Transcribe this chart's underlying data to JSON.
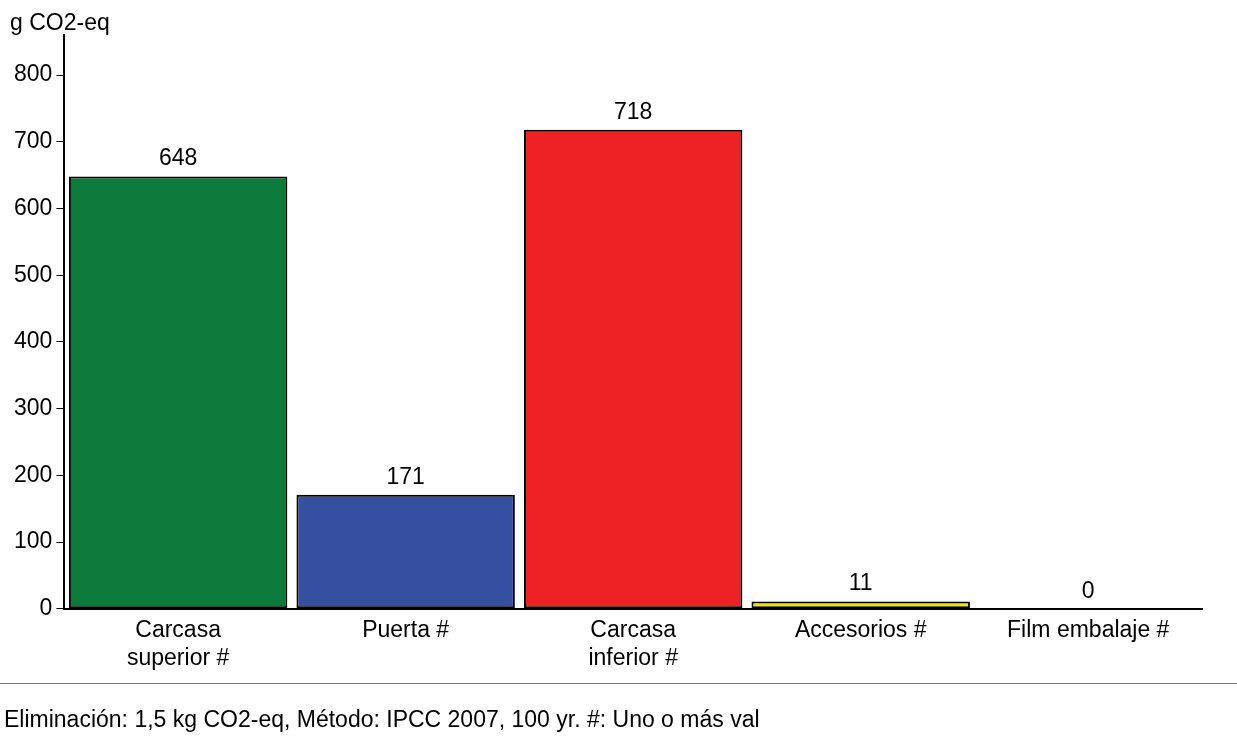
{
  "chart_data": {
    "type": "bar",
    "ylabel": "g CO2-eq",
    "categories": [
      "Carcasa superior #",
      "Puerta #",
      "Carcasa inferior #",
      "Accesorios #",
      "Film embalaje #"
    ],
    "values": [
      648,
      171,
      718,
      11,
      0
    ],
    "colors": [
      "#0b7a3b",
      "#3550a0",
      "#ee2124",
      "#f2e600",
      "#808080"
    ],
    "ylim": [
      0,
      860
    ],
    "yticks": [
      0,
      100,
      200,
      300,
      400,
      500,
      600,
      700,
      800
    ],
    "data_labels": true,
    "grid": false,
    "legend": false,
    "annotations": [
      "Eliminación: 1,5 kg CO2-eq, Método: IPCC 2007, 100 yr. #: Uno o más val"
    ]
  }
}
